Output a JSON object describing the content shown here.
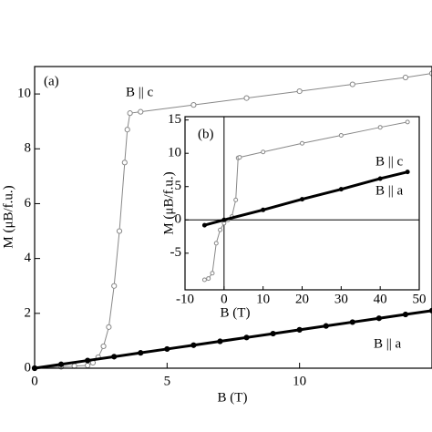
{
  "chart_data": [
    {
      "type": "line",
      "xlabel": "B (T)",
      "ylabel": "M (μB/f.u.)",
      "xlim": [
        0,
        15
      ],
      "ylim": [
        0,
        11
      ],
      "xticks": [
        0,
        5,
        10
      ],
      "yticks": [
        0,
        2,
        4,
        6,
        8,
        10
      ],
      "annotations": [
        "(a)",
        "B || c",
        "B || a"
      ],
      "series": [
        {
          "name": "B || c",
          "color": "#888888",
          "x": [
            0,
            1,
            1.5,
            2,
            2.2,
            2.4,
            2.6,
            2.8,
            3.0,
            3.2,
            3.4,
            3.5,
            3.6,
            4,
            6,
            8,
            10,
            12,
            14,
            15
          ],
          "values": [
            0,
            0.05,
            0.08,
            0.1,
            0.2,
            0.4,
            0.8,
            1.5,
            3,
            5,
            7.5,
            8.7,
            9.3,
            9.35,
            9.6,
            9.85,
            10.1,
            10.35,
            10.6,
            10.75
          ]
        },
        {
          "name": "B || a",
          "color": "#000000",
          "x": [
            0,
            1,
            2,
            3,
            4,
            5,
            6,
            7,
            8,
            9,
            10,
            11,
            12,
            13,
            14,
            15
          ],
          "values": [
            0,
            0.14,
            0.28,
            0.42,
            0.56,
            0.7,
            0.84,
            0.98,
            1.12,
            1.26,
            1.4,
            1.54,
            1.68,
            1.82,
            1.96,
            2.1
          ]
        }
      ]
    },
    {
      "type": "line",
      "xlabel": "B (T)",
      "ylabel": "M (μB/f.u.)",
      "xlim": [
        -10,
        50
      ],
      "ylim": [
        -10.5,
        15.5
      ],
      "xticks": [
        -10,
        0,
        10,
        20,
        30,
        40,
        50
      ],
      "yticks": [
        -5,
        0,
        5,
        10,
        15
      ],
      "annotations": [
        "(b)",
        "B || c",
        "B || a"
      ],
      "series": [
        {
          "name": "B || c",
          "color": "#888888",
          "x": [
            -5,
            -4,
            -3,
            -2,
            -1,
            0,
            1,
            2,
            3,
            3.6,
            4,
            10,
            20,
            30,
            40,
            47
          ],
          "values": [
            -9,
            -8.8,
            -8,
            -3.5,
            -1.5,
            -0.5,
            0,
            0.5,
            3,
            9.3,
            9.4,
            10.2,
            11.5,
            12.7,
            13.9,
            14.7
          ]
        },
        {
          "name": "B || a",
          "color": "#000000",
          "x": [
            -5,
            0,
            10,
            20,
            30,
            40,
            47
          ],
          "values": [
            -0.8,
            0,
            1.5,
            3.1,
            4.6,
            6.2,
            7.2
          ]
        }
      ]
    }
  ]
}
